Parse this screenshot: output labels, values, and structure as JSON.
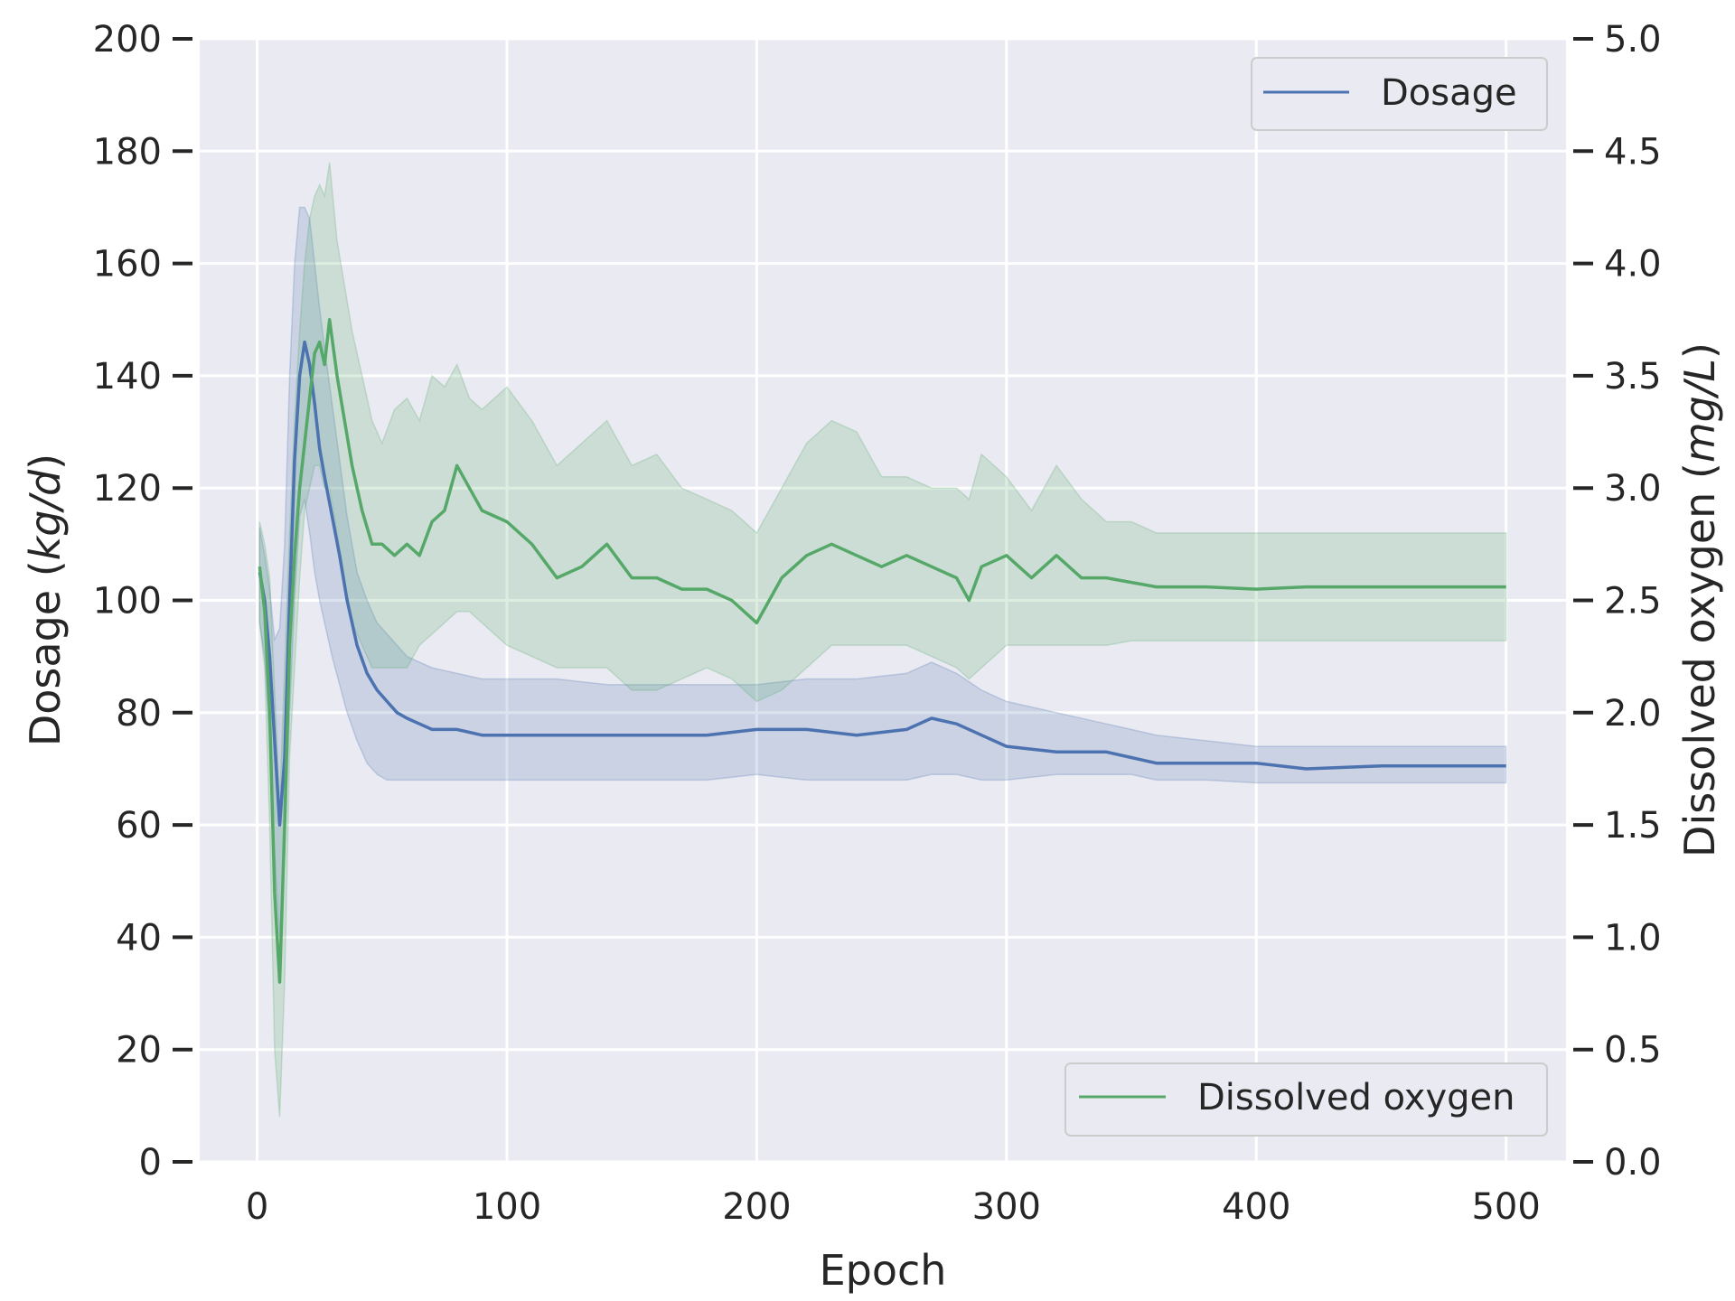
{
  "chart_data": {
    "type": "line",
    "title": "",
    "xlabel": "Epoch",
    "ylabel_left": {
      "prefix": "Dosage (",
      "unit": "kg/d",
      "suffix": ")"
    },
    "ylabel_right": {
      "prefix": "Dissolved oxygen (",
      "unit": "mg/L",
      "suffix": ")"
    },
    "xlim": [
      -23,
      524
    ],
    "ylim_left": [
      0,
      200
    ],
    "ylim_right": [
      0.0,
      5.0
    ],
    "x_ticks": [
      0,
      100,
      200,
      300,
      400,
      500
    ],
    "x_tick_labels": [
      "0",
      "100",
      "200",
      "300",
      "400",
      "500"
    ],
    "y_left_ticks": [
      0,
      20,
      40,
      60,
      80,
      100,
      120,
      140,
      160,
      180,
      200
    ],
    "y_left_tick_labels": [
      "0",
      "20",
      "40",
      "60",
      "80",
      "100",
      "120",
      "140",
      "160",
      "180",
      "200"
    ],
    "y_right_ticks": [
      0.0,
      0.5,
      1.0,
      1.5,
      2.0,
      2.5,
      3.0,
      3.5,
      4.0,
      4.5,
      5.0
    ],
    "y_right_tick_labels": [
      "0.0",
      "0.5",
      "1.0",
      "1.5",
      "2.0",
      "2.5",
      "3.0",
      "3.5",
      "4.0",
      "4.5",
      "5.0"
    ],
    "grid": true,
    "series": [
      {
        "name": "Dosage",
        "axis": "left",
        "color": "#4c72b0",
        "legend_position": "top-right",
        "x": [
          1,
          3,
          5,
          7,
          9,
          11,
          13,
          15,
          17,
          19,
          21,
          23,
          25,
          27,
          30,
          33,
          36,
          40,
          44,
          48,
          52,
          56,
          60,
          65,
          70,
          80,
          90,
          100,
          120,
          140,
          160,
          180,
          200,
          220,
          240,
          260,
          270,
          280,
          290,
          300,
          320,
          340,
          350,
          360,
          380,
          400,
          420,
          450,
          500
        ],
        "mean": [
          105,
          100,
          90,
          75,
          60,
          72,
          100,
          125,
          140,
          146,
          142,
          135,
          127,
          122,
          115,
          108,
          100,
          92,
          87,
          84,
          82,
          80,
          79,
          78,
          77,
          77,
          76,
          76,
          76,
          76,
          76,
          76,
          77,
          77,
          76,
          77,
          79,
          78,
          76,
          74,
          73,
          73,
          72,
          71,
          71,
          71,
          70,
          70.5,
          70.5
        ],
        "lower": [
          96,
          90,
          75,
          55,
          40,
          55,
          80,
          100,
          115,
          118,
          112,
          105,
          100,
          96,
          90,
          85,
          80,
          75,
          71,
          69,
          68,
          68,
          68,
          68,
          68,
          68,
          68,
          68,
          68,
          68,
          68,
          68,
          69,
          68,
          68,
          68,
          69,
          69,
          68,
          68,
          69,
          69,
          69,
          68,
          68,
          67.5,
          67.5,
          67.5,
          67.5
        ],
        "upper": [
          113,
          108,
          102,
          93,
          95,
          110,
          140,
          160,
          170,
          170,
          168,
          160,
          152,
          145,
          135,
          125,
          115,
          105,
          100,
          96,
          94,
          92,
          90,
          89,
          88,
          87,
          86,
          86,
          86,
          85,
          85,
          85,
          85,
          86,
          86,
          87,
          89,
          87,
          84,
          82,
          80,
          78,
          77,
          76,
          75,
          74,
          74,
          74,
          74
        ]
      },
      {
        "name": "Dissolved oxygen",
        "axis": "right",
        "color": "#55a868",
        "legend_position": "bottom-right",
        "x": [
          1,
          3,
          5,
          7,
          9,
          11,
          13,
          15,
          17,
          19,
          21,
          23,
          25,
          27,
          29,
          32,
          35,
          38,
          42,
          46,
          50,
          55,
          60,
          65,
          70,
          75,
          80,
          85,
          90,
          100,
          110,
          120,
          130,
          140,
          150,
          160,
          170,
          180,
          190,
          200,
          210,
          220,
          230,
          240,
          250,
          260,
          270,
          280,
          285,
          290,
          300,
          310,
          320,
          330,
          340,
          350,
          360,
          380,
          400,
          420,
          450,
          500
        ],
        "mean": [
          2.65,
          2.45,
          2.0,
          1.2,
          0.8,
          1.5,
          2.3,
          2.7,
          3.0,
          3.2,
          3.4,
          3.6,
          3.65,
          3.55,
          3.75,
          3.5,
          3.3,
          3.1,
          2.9,
          2.75,
          2.75,
          2.7,
          2.75,
          2.7,
          2.85,
          2.9,
          3.1,
          3.0,
          2.9,
          2.85,
          2.75,
          2.6,
          2.65,
          2.75,
          2.6,
          2.6,
          2.55,
          2.55,
          2.5,
          2.4,
          2.6,
          2.7,
          2.75,
          2.7,
          2.65,
          2.7,
          2.65,
          2.6,
          2.5,
          2.65,
          2.7,
          2.6,
          2.7,
          2.6,
          2.6,
          2.58,
          2.56,
          2.56,
          2.55,
          2.56,
          2.56,
          2.56
        ],
        "lower": [
          2.4,
          2.2,
          1.5,
          0.5,
          0.2,
          0.8,
          1.8,
          2.2,
          2.6,
          2.9,
          3.0,
          3.1,
          3.1,
          3.0,
          3.0,
          2.8,
          2.6,
          2.4,
          2.3,
          2.2,
          2.2,
          2.2,
          2.2,
          2.3,
          2.35,
          2.4,
          2.45,
          2.45,
          2.4,
          2.3,
          2.25,
          2.2,
          2.2,
          2.2,
          2.1,
          2.1,
          2.15,
          2.2,
          2.15,
          2.05,
          2.1,
          2.2,
          2.3,
          2.3,
          2.3,
          2.3,
          2.25,
          2.2,
          2.15,
          2.2,
          2.3,
          2.3,
          2.3,
          2.3,
          2.3,
          2.32,
          2.32,
          2.32,
          2.32,
          2.32,
          2.32,
          2.32
        ],
        "upper": [
          2.85,
          2.75,
          2.6,
          2.1,
          1.6,
          2.2,
          2.8,
          3.3,
          3.7,
          4.0,
          4.2,
          4.3,
          4.35,
          4.3,
          4.45,
          4.1,
          3.9,
          3.7,
          3.5,
          3.3,
          3.2,
          3.35,
          3.4,
          3.3,
          3.5,
          3.45,
          3.55,
          3.4,
          3.35,
          3.45,
          3.3,
          3.1,
          3.2,
          3.3,
          3.1,
          3.15,
          3.0,
          2.95,
          2.9,
          2.8,
          3.0,
          3.2,
          3.3,
          3.25,
          3.05,
          3.05,
          3.0,
          3.0,
          2.95,
          3.15,
          3.05,
          2.9,
          3.1,
          2.95,
          2.85,
          2.85,
          2.8,
          2.8,
          2.8,
          2.8,
          2.8,
          2.8
        ]
      }
    ]
  }
}
